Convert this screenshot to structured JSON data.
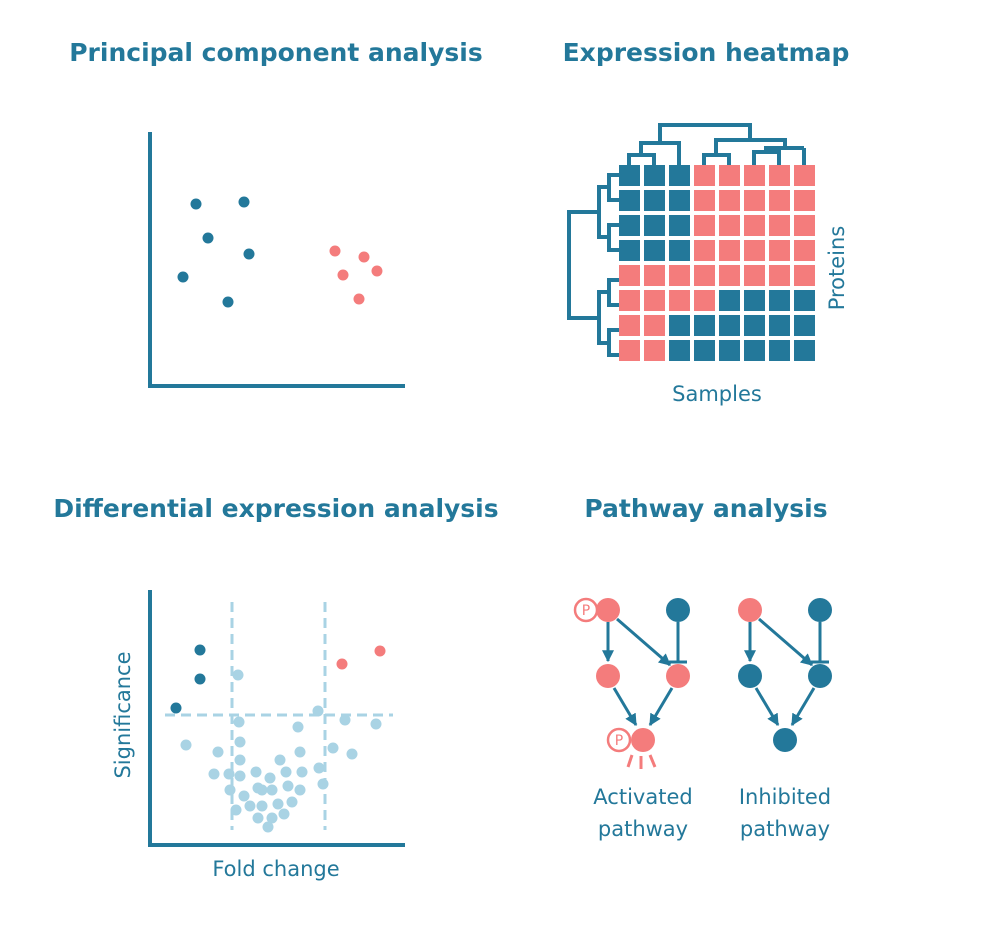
{
  "panels": [
    {
      "title": "Principal component analysis"
    },
    {
      "title": "Expression heatmap",
      "y_label": "Proteins",
      "x_label": "Samples"
    },
    {
      "title": "Differential expression analysis",
      "y_label": "Significance",
      "x_label": "Fold change"
    },
    {
      "title": "Pathway analysis",
      "phospho_label": "P",
      "pathways": [
        {
          "label": [
            "Activated",
            "pathway"
          ]
        },
        {
          "label": [
            "Inhibited",
            "pathway"
          ]
        }
      ]
    }
  ]
}
